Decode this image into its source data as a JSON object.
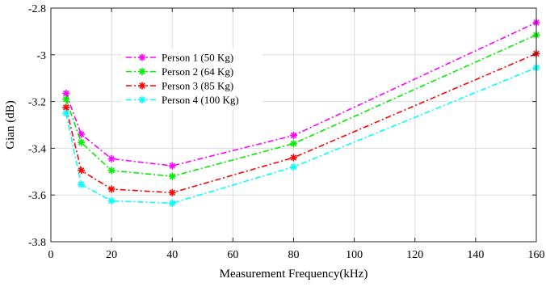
{
  "chart_data": {
    "type": "line",
    "xlabel": "Measurement Frequency(kHz)",
    "ylabel": "Gian (dB)",
    "xlim": [
      0,
      160
    ],
    "ylim": [
      -3.8,
      -2.8
    ],
    "xticks": [
      0,
      20,
      40,
      60,
      80,
      100,
      120,
      140,
      160
    ],
    "yticks": [
      -2.8,
      -3,
      -3.2,
      -3.4,
      -3.6,
      -3.8
    ],
    "xtick_labels": [
      "0",
      "20",
      "40",
      "60",
      "80",
      "100",
      "120",
      "140",
      "160"
    ],
    "ytick_labels": [
      "-2.8",
      "-3",
      "-3.2",
      "-3.4",
      "-3.6",
      "-3.8"
    ],
    "grid": true,
    "legend_position": "upper-left",
    "x": [
      5,
      10,
      20,
      40,
      80,
      160
    ],
    "series": [
      {
        "name": "Person 1 (50 Kg)",
        "color": "#ff00ff",
        "values": [
          -3.165,
          -3.34,
          -3.445,
          -3.475,
          -3.345,
          -2.862
        ]
      },
      {
        "name": "Person 2 (64 Kg)",
        "color": "#00ee00",
        "values": [
          -3.19,
          -3.375,
          -3.495,
          -3.52,
          -3.38,
          -2.915
        ]
      },
      {
        "name": "Person 3 (85 Kg)",
        "color": "#ff0000",
        "values": [
          -3.225,
          -3.495,
          -3.575,
          -3.59,
          -3.44,
          -2.995
        ]
      },
      {
        "name": "Person 4 (100 Kg)",
        "color": "#00ffff",
        "values": [
          -3.25,
          -3.555,
          -3.625,
          -3.635,
          -3.48,
          -3.055
        ]
      }
    ]
  }
}
